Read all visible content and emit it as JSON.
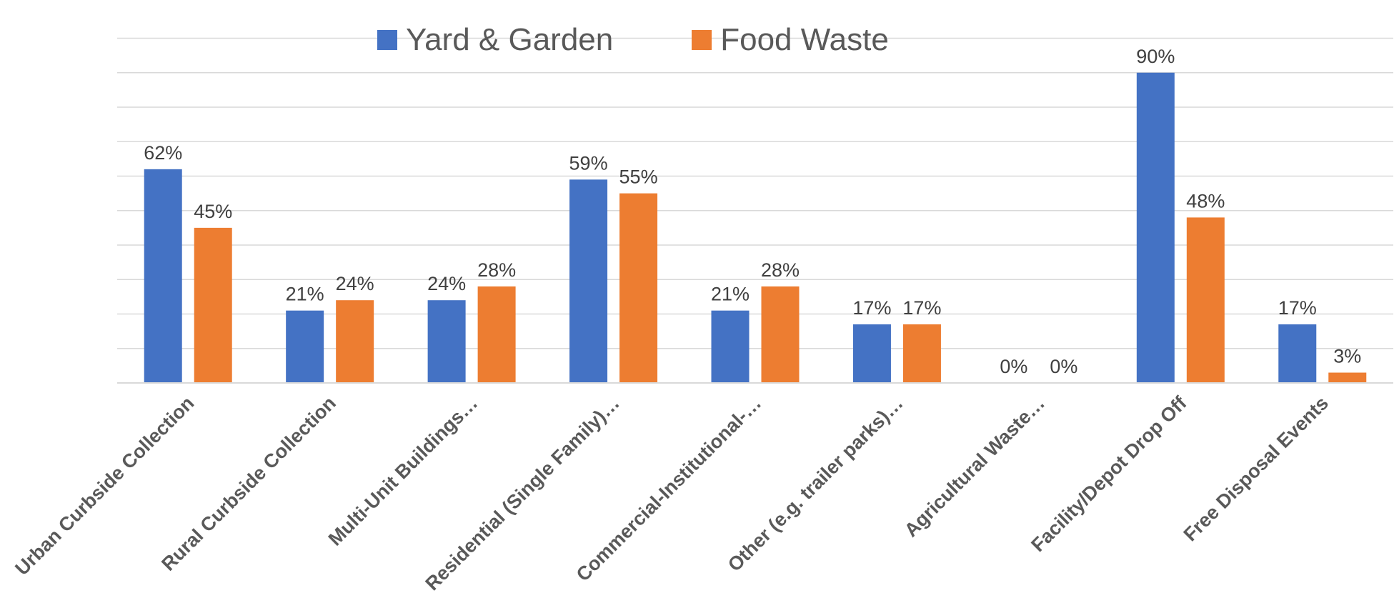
{
  "chart_data": {
    "type": "bar",
    "title": "",
    "xlabel": "",
    "ylabel": "",
    "ylim": [
      0,
      100
    ],
    "grid": true,
    "legend_position": "top-center",
    "categories": [
      "Urban Curbside Collection",
      "Rural Curbside Collection",
      "Multi-Unit Buildings…",
      "Residential (Single Family)…",
      "Commercial-Institutional-…",
      "Other (e.g. trailer parks)…",
      "Agricultural Waste…",
      "Facility/Depot Drop Off",
      "Free Disposal Events"
    ],
    "series": [
      {
        "name": "Yard & Garden",
        "color": "#4472C4",
        "values": [
          62,
          21,
          24,
          59,
          21,
          17,
          0,
          90,
          17
        ],
        "labels": [
          "62%",
          "21%",
          "24%",
          "59%",
          "21%",
          "17%",
          "0%",
          "90%",
          "17%"
        ]
      },
      {
        "name": "Food Waste",
        "color": "#ED7D31",
        "values": [
          45,
          24,
          28,
          55,
          28,
          17,
          0,
          48,
          3
        ],
        "labels": [
          "45%",
          "24%",
          "28%",
          "55%",
          "28%",
          "17%",
          "0%",
          "48%",
          "3%"
        ]
      }
    ]
  }
}
